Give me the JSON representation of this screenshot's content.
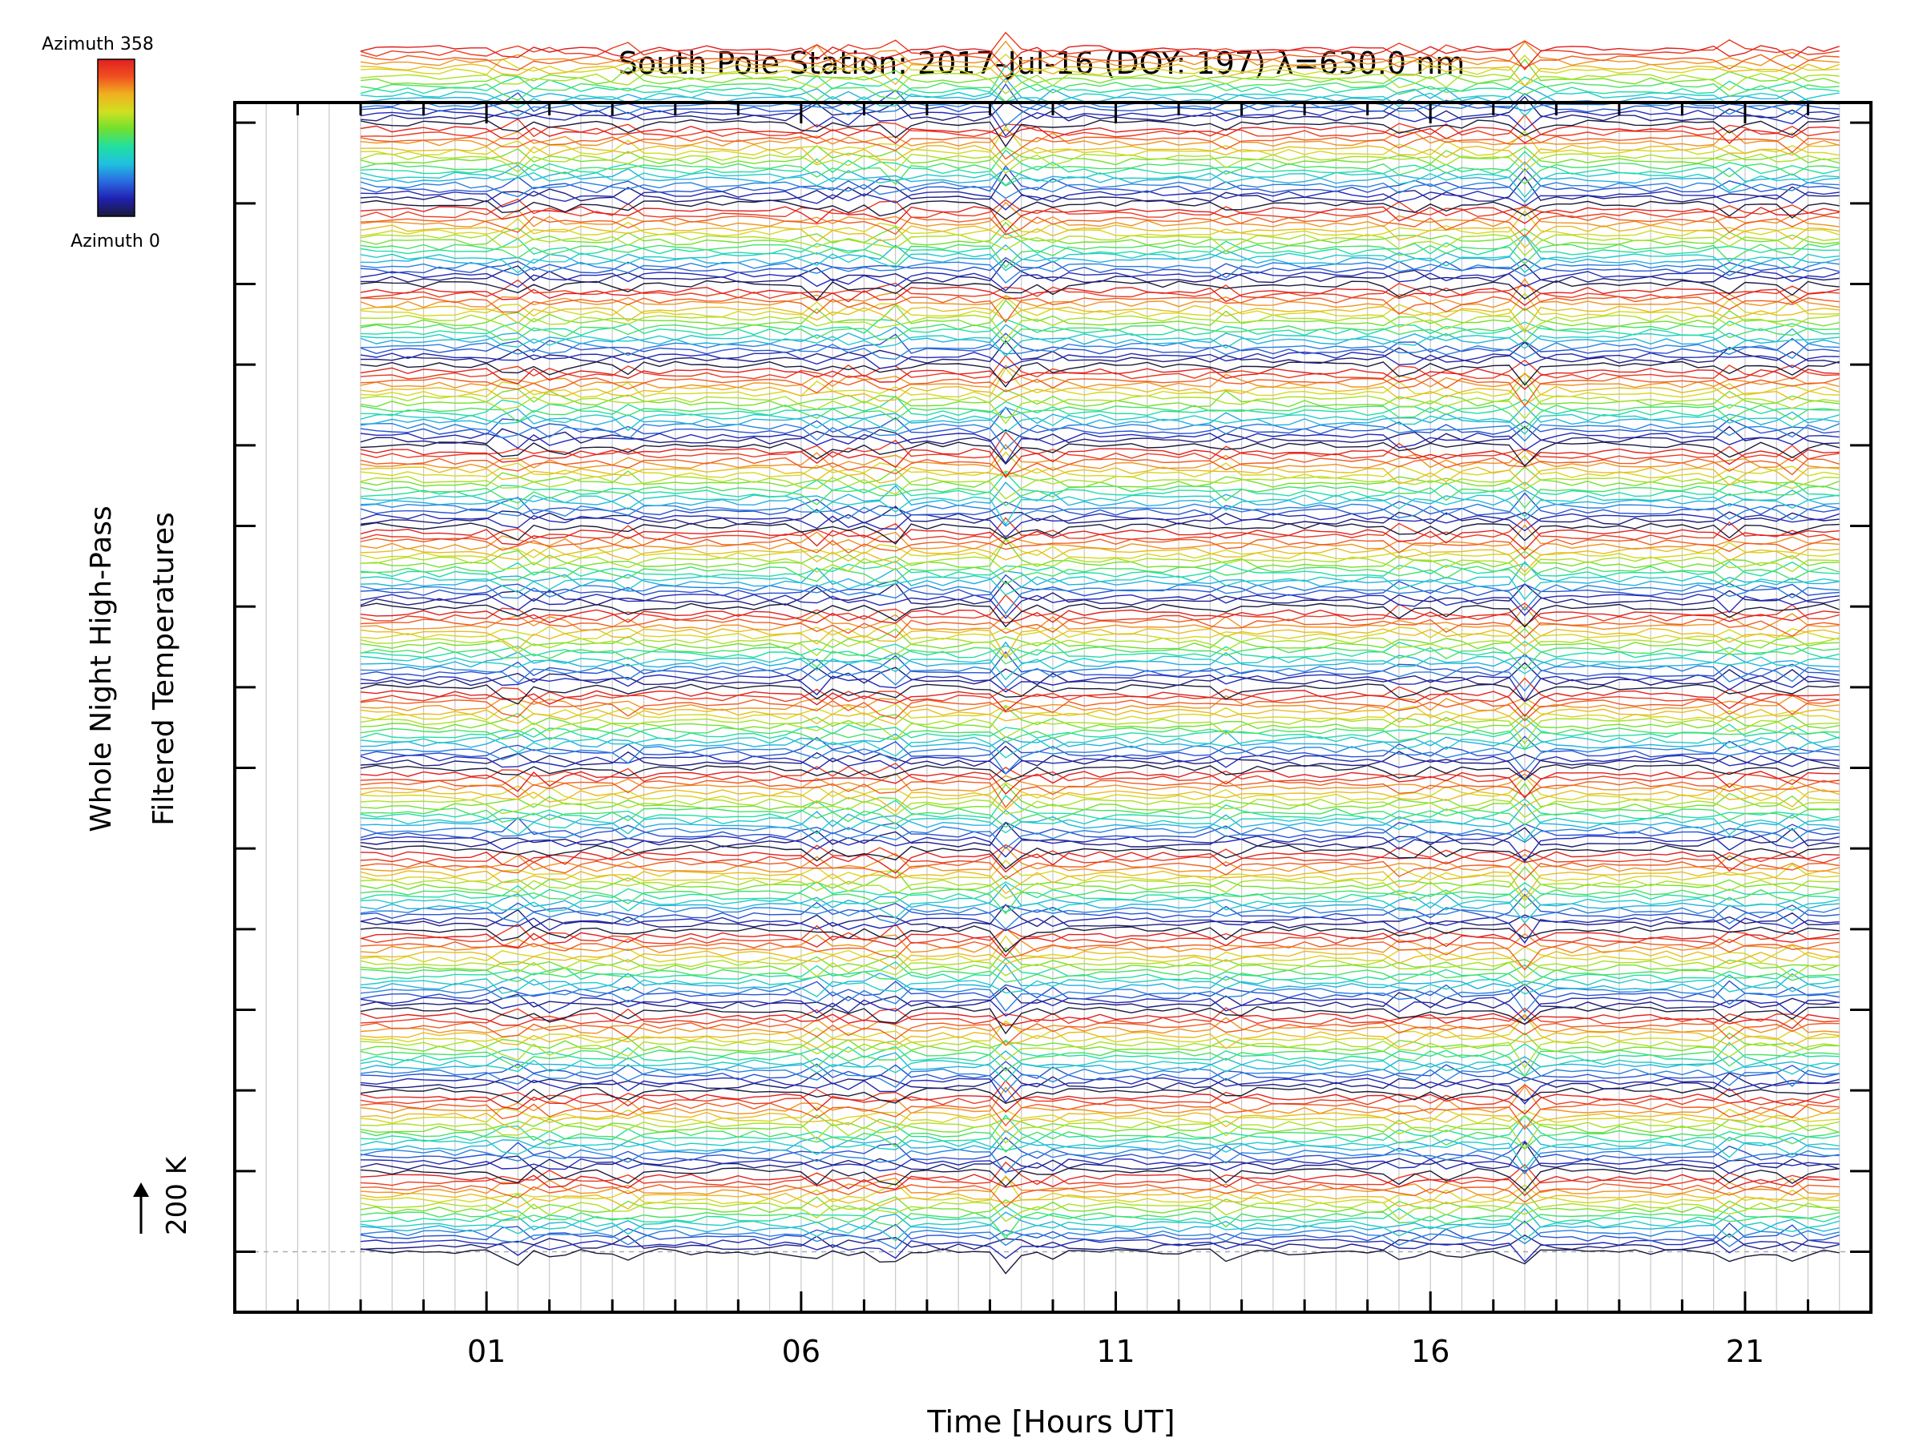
{
  "colors": {
    "frame": "#000000",
    "grid": "#c8c8c8",
    "baseline": "#aaaaaa",
    "colormap": [
      "#1a1a3a",
      "#2020b0",
      "#2a6ae0",
      "#20c0e0",
      "#20e0a0",
      "#70e030",
      "#d0e020",
      "#f0b020",
      "#f05020",
      "#e02020"
    ]
  },
  "chart_data": {
    "type": "line",
    "title": "South Pole Station: 2017-Jul-16 (DOY: 197) λ=630.0 nm",
    "xlabel": "Time [Hours UT]",
    "ylabel_lines": [
      "Whole Night High-Pass",
      "Filtered Temperatures"
    ],
    "scale_label": "200 K",
    "colorbar": {
      "top_label": "Azimuth 358",
      "bottom_label": "Azimuth 0"
    },
    "xlim": [
      -3,
      23
    ],
    "x_tick_labels": [
      {
        "value": 1,
        "label": "01"
      },
      {
        "value": 6,
        "label": "06"
      },
      {
        "value": 11,
        "label": "11"
      },
      {
        "value": 16,
        "label": "16"
      },
      {
        "value": 21,
        "label": "21"
      }
    ],
    "x_minor_step": 1,
    "data_range": [
      -1,
      22.6
    ],
    "n_panels": 15,
    "series_per_panel": 17,
    "sample_step_hours": 0.25,
    "panel_spacing_K": 200,
    "line_spacing_K": 11.5,
    "ylim": [
      -150,
      2850
    ],
    "baseline_K": 0,
    "event_times": [
      {
        "t": 1.4,
        "amp": 70
      },
      {
        "t": 2.1,
        "amp": 45
      },
      {
        "t": 3.2,
        "amp": 40
      },
      {
        "t": 6.2,
        "amp": 55
      },
      {
        "t": 6.8,
        "amp": 35
      },
      {
        "t": 7.4,
        "amp": 75
      },
      {
        "t": 9.3,
        "amp": 90
      },
      {
        "t": 10.0,
        "amp": 30
      },
      {
        "t": 12.8,
        "amp": 40
      },
      {
        "t": 15.6,
        "amp": 55
      },
      {
        "t": 16.3,
        "amp": 35
      },
      {
        "t": 17.5,
        "amp": 80
      },
      {
        "t": 20.8,
        "amp": 50
      },
      {
        "t": 21.7,
        "amp": 45
      }
    ]
  }
}
